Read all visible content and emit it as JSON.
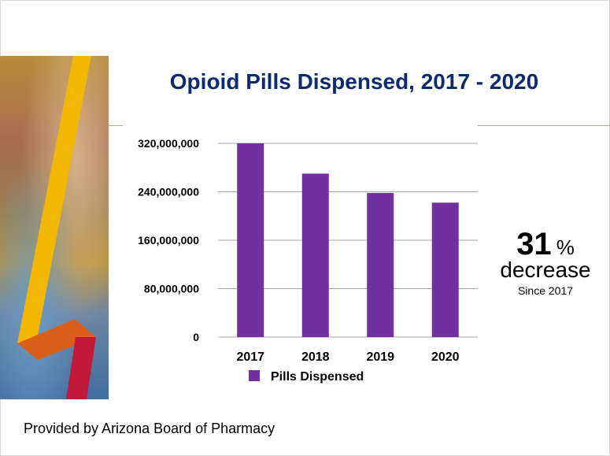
{
  "chart_data": {
    "type": "bar",
    "title": "Opioid Pills Dispensed, 2017 - 2020",
    "categories": [
      "2017",
      "2018",
      "2019",
      "2020"
    ],
    "series": [
      {
        "name": "Pills Dispensed",
        "values": [
          320000000,
          270000000,
          238000000,
          222000000
        ],
        "color": "#7030a0"
      }
    ],
    "y_ticks": [
      "0",
      "80,000,000",
      "160,000,000",
      "240,000,000",
      "320,000,000"
    ],
    "ylim": [
      0,
      320000000
    ],
    "grid": true,
    "legend_position": "bottom"
  },
  "callout": {
    "number": "31",
    "unit": "%",
    "word": "decrease",
    "since": "Since 2017"
  },
  "footer": {
    "credit": "Provided by Arizona Board of Pharmacy"
  },
  "colors": {
    "title": "#0e2a6b",
    "bar": "#7030a0",
    "gridline": "#a6a6a6"
  }
}
